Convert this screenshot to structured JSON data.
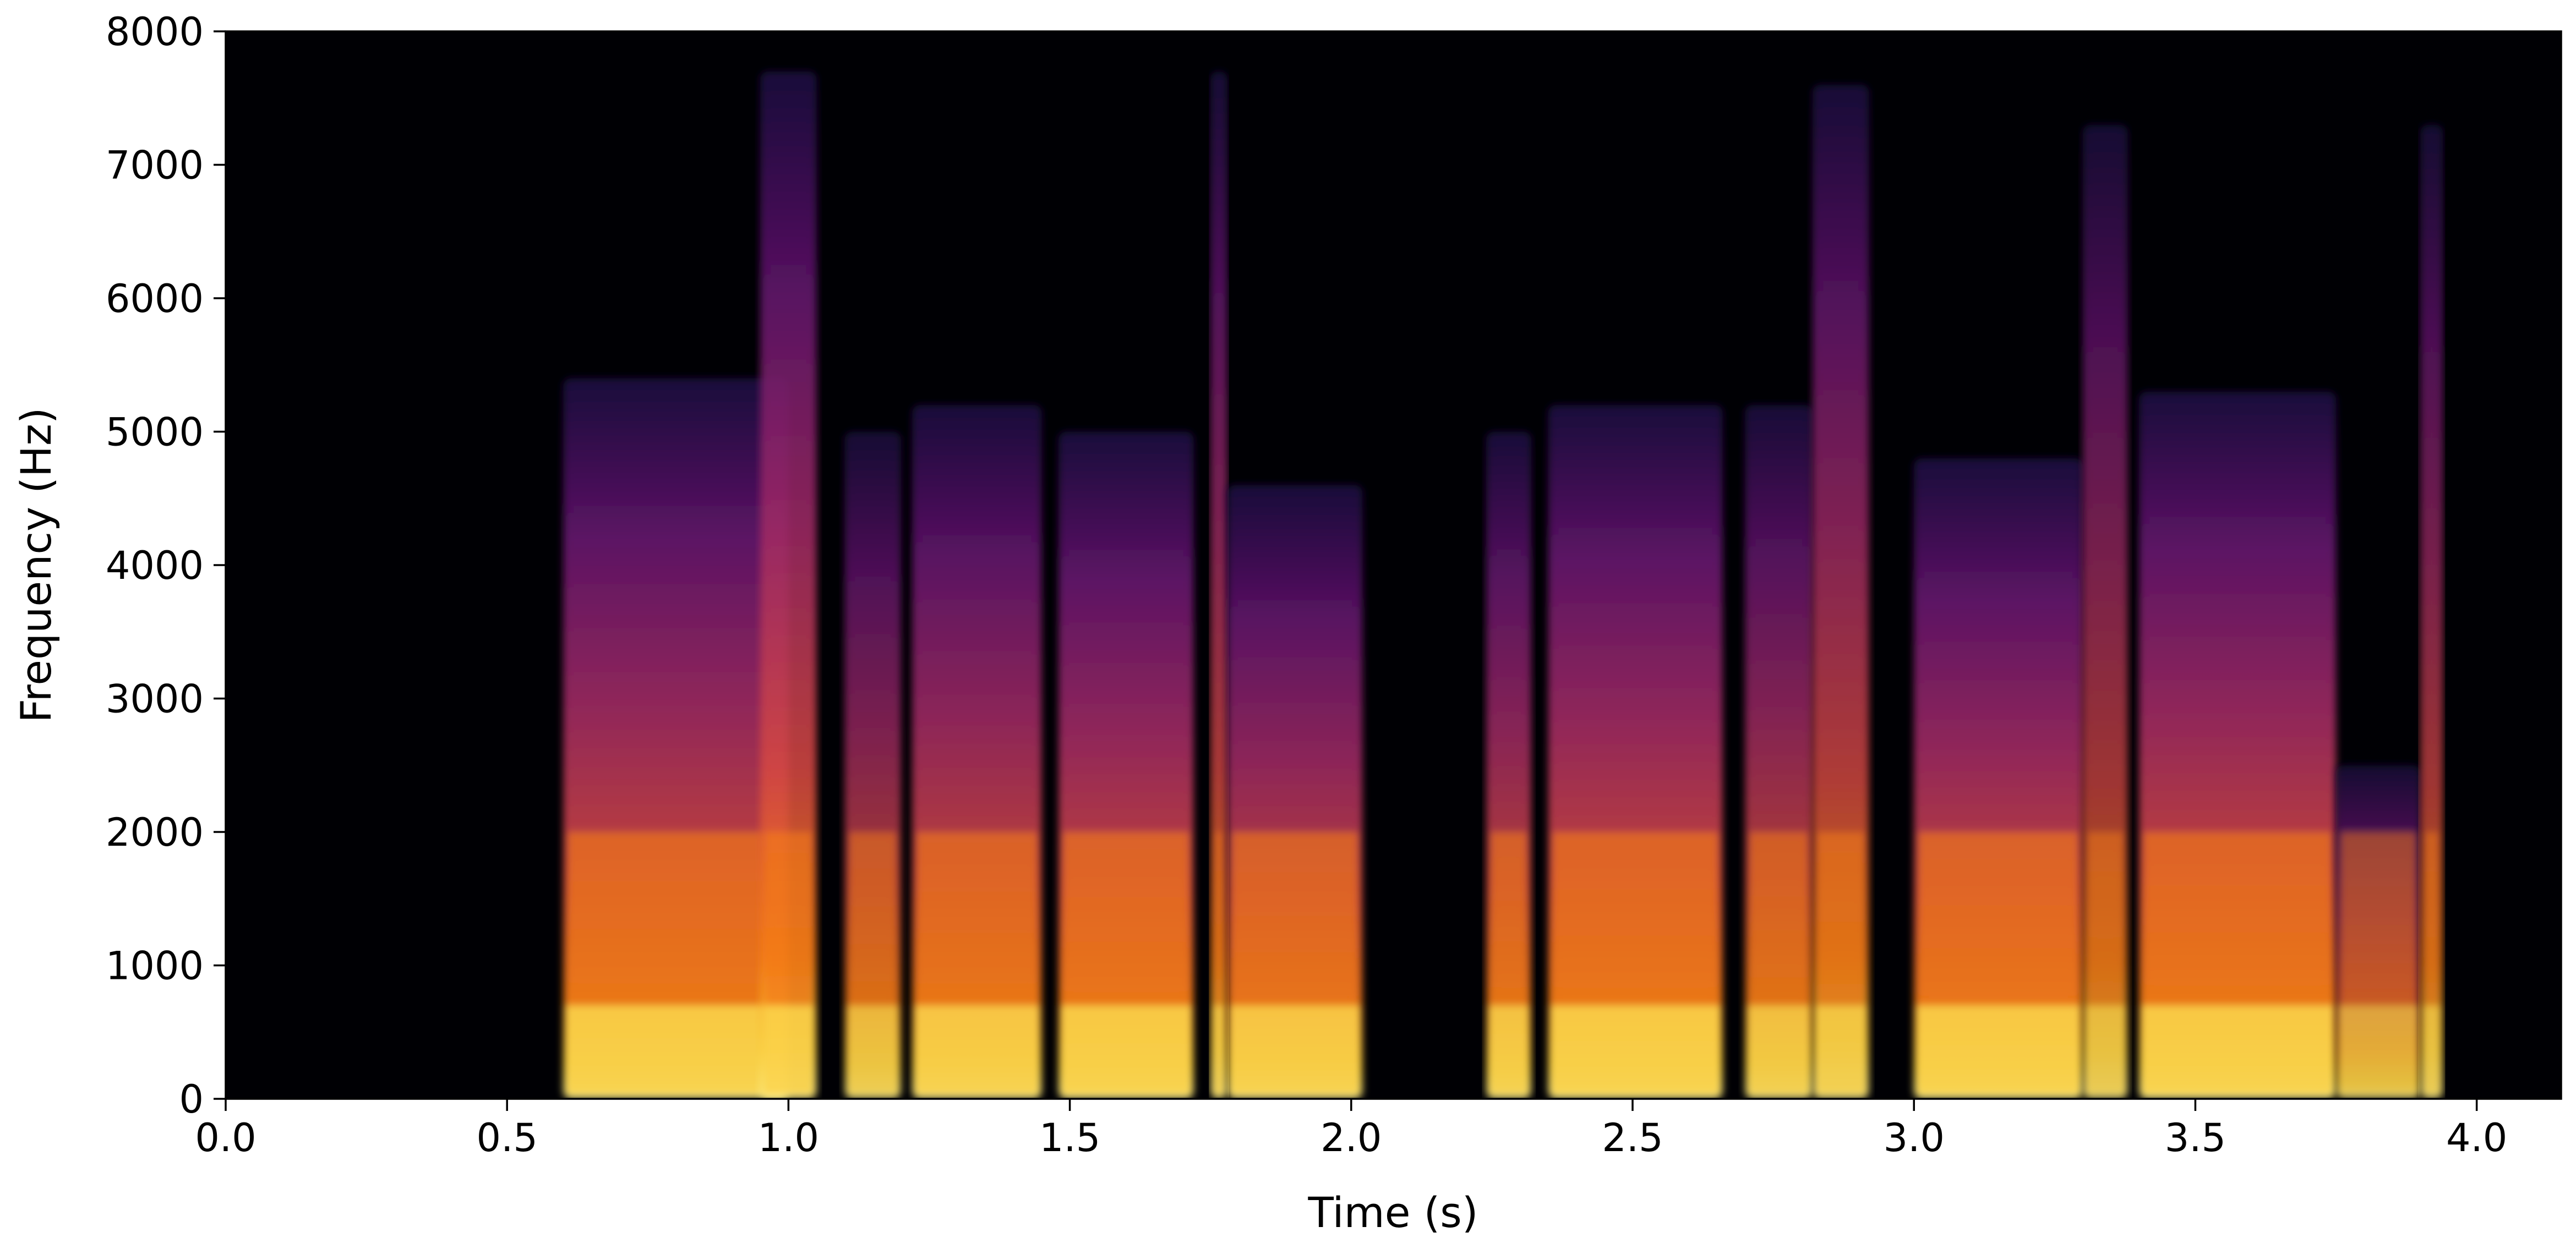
{
  "chart_data": {
    "type": "heatmap",
    "title": "",
    "xlabel": "Time (s)",
    "ylabel": "Frequency (Hz)",
    "xlim": [
      0,
      4.15
    ],
    "ylim": [
      0,
      8000
    ],
    "x_ticks": [
      0.0,
      0.5,
      1.0,
      1.5,
      2.0,
      2.5,
      3.0,
      3.5,
      4.0
    ],
    "x_tick_labels": [
      "0.0",
      "0.5",
      "1.0",
      "1.5",
      "2.0",
      "2.5",
      "3.0",
      "3.5",
      "4.0"
    ],
    "y_ticks": [
      0,
      1000,
      2000,
      3000,
      4000,
      5000,
      6000,
      7000,
      8000
    ],
    "y_tick_labels": [
      "0",
      "1000",
      "2000",
      "3000",
      "4000",
      "5000",
      "6000",
      "7000",
      "8000"
    ],
    "colormap": "inferno",
    "background_color": "#000004",
    "grid": false,
    "legend": "none",
    "segments": [
      {
        "start": 0.6,
        "end": 1.0,
        "top_hz": 5400,
        "level": 0.9
      },
      {
        "start": 0.95,
        "end": 1.05,
        "top_hz": 7700,
        "level": 0.85
      },
      {
        "start": 1.1,
        "end": 1.2,
        "top_hz": 5000,
        "level": 0.65
      },
      {
        "start": 1.22,
        "end": 1.45,
        "top_hz": 5200,
        "level": 0.85
      },
      {
        "start": 1.48,
        "end": 1.72,
        "top_hz": 5000,
        "level": 0.9
      },
      {
        "start": 1.75,
        "end": 1.78,
        "top_hz": 7700,
        "level": 0.7
      },
      {
        "start": 1.78,
        "end": 2.02,
        "top_hz": 4600,
        "level": 0.85
      },
      {
        "start": 2.24,
        "end": 2.32,
        "top_hz": 5000,
        "level": 0.8
      },
      {
        "start": 2.35,
        "end": 2.66,
        "top_hz": 5200,
        "level": 0.9
      },
      {
        "start": 2.7,
        "end": 2.82,
        "top_hz": 5200,
        "level": 0.75
      },
      {
        "start": 2.82,
        "end": 2.92,
        "top_hz": 7600,
        "level": 0.75
      },
      {
        "start": 3.0,
        "end": 3.3,
        "top_hz": 4800,
        "level": 0.9
      },
      {
        "start": 3.3,
        "end": 3.38,
        "top_hz": 7300,
        "level": 0.6
      },
      {
        "start": 3.4,
        "end": 3.75,
        "top_hz": 5300,
        "level": 0.9
      },
      {
        "start": 3.75,
        "end": 3.9,
        "top_hz": 2500,
        "level": 0.55
      },
      {
        "start": 3.9,
        "end": 3.94,
        "top_hz": 7300,
        "level": 0.6
      }
    ]
  }
}
